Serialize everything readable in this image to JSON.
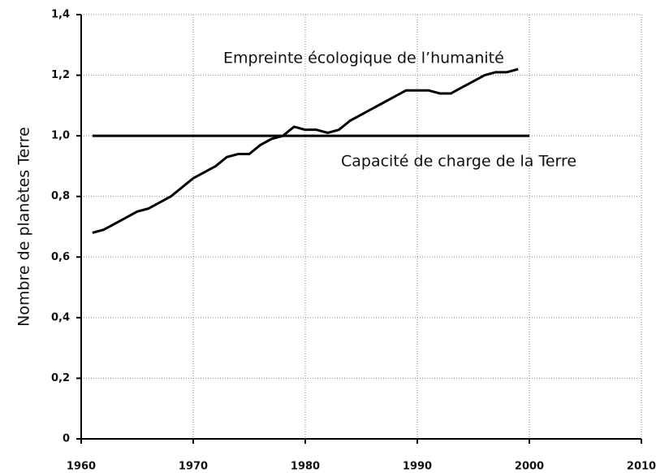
{
  "chart_data": {
    "type": "line",
    "y_label": "Nombre de planètes Terre",
    "annotations": [
      "Empreinte écologique de l’humanité",
      "Capacité de charge de la Terre"
    ],
    "xlim": [
      1960,
      2010
    ],
    "xticks": [
      1960,
      1970,
      1980,
      1990,
      2000,
      2010
    ],
    "ylim": [
      0,
      1.4
    ],
    "yticks": [
      0,
      {
        "value": 0.2,
        "label": "0,2"
      },
      {
        "value": 0.4,
        "label": "0,4"
      },
      {
        "value": 0.6,
        "label": "0,6"
      },
      {
        "value": 0.8,
        "label": "0,8"
      },
      {
        "value": 1.0,
        "label": "1,0"
      },
      {
        "value": 1.2,
        "label": "1,2"
      },
      {
        "value": 1.4,
        "label": "1,4"
      }
    ],
    "grid": true,
    "series": [
      {
        "color": "#000000",
        "x": [
          1961,
          1962,
          1963,
          1964,
          1965,
          1966,
          1967,
          1968,
          1969,
          1970,
          1971,
          1972,
          1973,
          1974,
          1975,
          1976,
          1977,
          1978,
          1979,
          1980,
          1981,
          1982,
          1983,
          1984,
          1985,
          1986,
          1987,
          1988,
          1989,
          1990,
          1991,
          1992,
          1993,
          1994,
          1995,
          1996,
          1997,
          1998,
          1999
        ],
        "values": [
          0.68,
          0.69,
          0.71,
          0.73,
          0.75,
          0.76,
          0.78,
          0.8,
          0.83,
          0.86,
          0.88,
          0.9,
          0.93,
          0.94,
          0.94,
          0.97,
          0.99,
          1.0,
          1.03,
          1.02,
          1.02,
          1.01,
          1.02,
          1.05,
          1.07,
          1.09,
          1.11,
          1.13,
          1.15,
          1.15,
          1.15,
          1.14,
          1.14,
          1.16,
          1.18,
          1.2,
          1.21,
          1.21,
          1.22
        ]
      },
      {
        "color": "#000000",
        "x": [
          1961,
          2000
        ],
        "values": [
          1.0,
          1.0
        ]
      }
    ]
  }
}
